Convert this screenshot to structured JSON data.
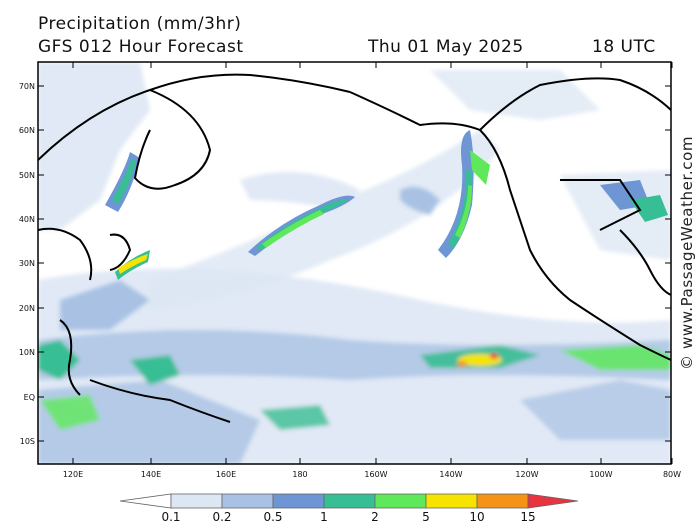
{
  "header": {
    "title": "Precipitation (mm/3hr)",
    "subtitle": "GFS 012 Hour Forecast",
    "date": "Thu 01 May 2025",
    "time": "18 UTC"
  },
  "watermark": "© www.PassageWeather.com",
  "map": {
    "lat_labels": [
      "70N",
      "60N",
      "50N",
      "40N",
      "30N",
      "20N",
      "10N",
      "EQ",
      "10S"
    ],
    "lon_labels": [
      "120E",
      "140E",
      "160E",
      "180",
      "160W",
      "140W",
      "120W",
      "100W",
      "80W"
    ]
  },
  "colorbar": {
    "labels": [
      "0.1",
      "0.2",
      "0.5",
      "1",
      "2",
      "5",
      "10",
      "15"
    ],
    "colors": [
      "#ffffff",
      "#dde7f4",
      "#a9c2e4",
      "#6e95d4",
      "#38be94",
      "#5fe85a",
      "#f6e400",
      "#f49318",
      "#e8343e"
    ]
  },
  "colors": {
    "precip_light": "#dde7f4",
    "precip_mid": "#a9c2e4",
    "precip_blue": "#6e95d4",
    "precip_teal": "#38be94",
    "precip_green": "#5fe85a",
    "precip_yellow": "#f6e400",
    "precip_orange": "#f49318",
    "precip_red": "#e8343e"
  }
}
